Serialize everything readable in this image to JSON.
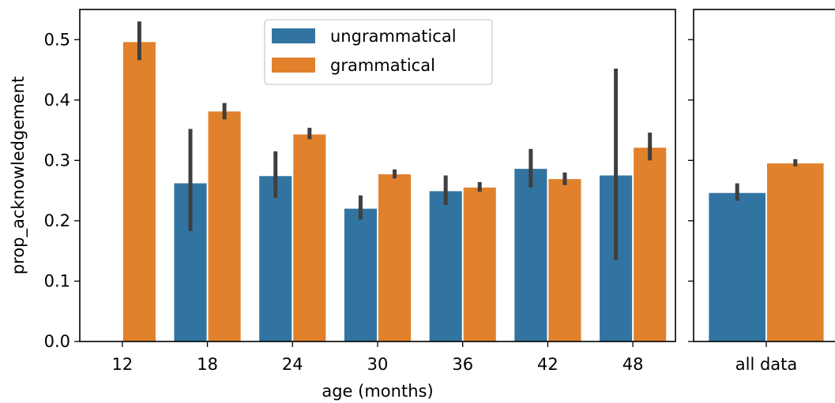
{
  "chart_data": [
    {
      "type": "bar",
      "xlabel": "age (months)",
      "ylabel": "prop_acknowledgement",
      "ylim": [
        0,
        0.55
      ],
      "yticks": [
        "0.0",
        "0.1",
        "0.2",
        "0.3",
        "0.4",
        "0.5"
      ],
      "categories": [
        "12",
        "18",
        "24",
        "30",
        "36",
        "42",
        "48"
      ],
      "legend": {
        "placement": "top-center"
      },
      "series": [
        {
          "name": "ungrammatical",
          "color": "#3274a1",
          "values": [
            null,
            0.262,
            0.274,
            0.22,
            0.249,
            0.286,
            0.275
          ],
          "error_low": [
            null,
            0.183,
            0.238,
            0.202,
            0.226,
            0.255,
            0.135
          ],
          "error_high": [
            null,
            0.352,
            0.315,
            0.242,
            0.275,
            0.319,
            0.452
          ]
        },
        {
          "name": "grammatical",
          "color": "#e1812c",
          "values": [
            0.496,
            0.381,
            0.343,
            0.277,
            0.255,
            0.269,
            0.321
          ],
          "error_low": [
            0.466,
            0.368,
            0.335,
            0.27,
            0.248,
            0.259,
            0.3
          ],
          "error_high": [
            0.53,
            0.395,
            0.354,
            0.285,
            0.264,
            0.28,
            0.346
          ]
        }
      ]
    },
    {
      "type": "bar",
      "xlabel": "",
      "ylabel": "",
      "ylim": [
        0,
        0.55
      ],
      "categories": [
        "all data"
      ],
      "series": [
        {
          "name": "ungrammatical",
          "color": "#3274a1",
          "values": [
            0.246
          ],
          "error_low": [
            0.233
          ],
          "error_high": [
            0.262
          ]
        },
        {
          "name": "grammatical",
          "color": "#e1812c",
          "values": [
            0.295
          ],
          "error_low": [
            0.29
          ],
          "error_high": [
            0.302
          ]
        }
      ]
    }
  ]
}
